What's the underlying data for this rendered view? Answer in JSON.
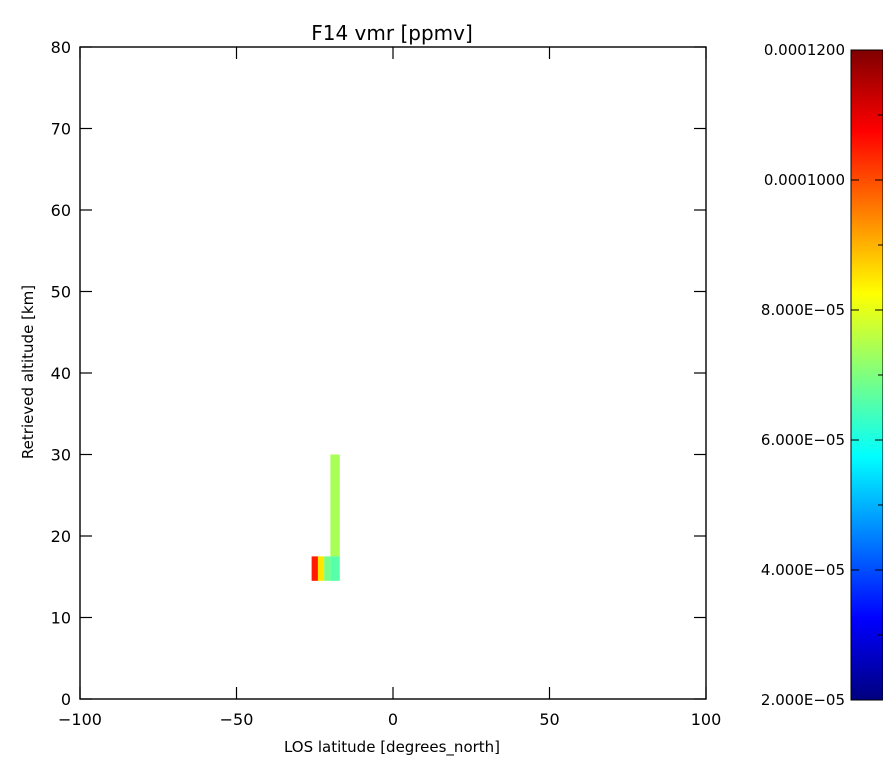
{
  "chart_data": {
    "type": "heatmap",
    "title": "F14 vmr [ppmv]",
    "xlabel": "LOS latitude [degrees_north]",
    "ylabel": "Retrieved altitude [km]",
    "xlim": [
      -100,
      100
    ],
    "ylim": [
      0,
      80
    ],
    "xticks": [
      -100,
      -50,
      0,
      50,
      100
    ],
    "xtick_labels": [
      "−100",
      "−50",
      "0",
      "50",
      "100"
    ],
    "yticks": [
      0,
      10,
      20,
      30,
      40,
      50,
      60,
      70,
      80
    ],
    "ytick_labels": [
      "0",
      "10",
      "20",
      "30",
      "40",
      "50",
      "60",
      "70",
      "80"
    ],
    "grid": false,
    "colorbar": {
      "min": 2e-05,
      "max": 0.00012,
      "colormap": "jet",
      "tick_values": [
        2e-05,
        4e-05,
        6e-05,
        8e-05,
        0.0001,
        0.00012
      ],
      "tick_labels": [
        "2.000E−05",
        "4.000E−05",
        "6.000E−05",
        "8.000E−05",
        "0.0001000",
        "0.0001200"
      ]
    },
    "cells": [
      {
        "lat_min": -20,
        "lat_max": -17,
        "alt_min": 17.5,
        "alt_max": 30,
        "value": 7.4e-05
      },
      {
        "lat_min": -20,
        "lat_max": -17,
        "alt_min": 14.5,
        "alt_max": 17.5,
        "value": 6.6e-05
      },
      {
        "lat_min": -22,
        "lat_max": -20,
        "alt_min": 14.5,
        "alt_max": 17.5,
        "value": 6.9e-05
      },
      {
        "lat_min": -24,
        "lat_max": -22,
        "alt_min": 14.5,
        "alt_max": 17.5,
        "value": 8.5e-05
      },
      {
        "lat_min": -26,
        "lat_max": -24,
        "alt_min": 14.5,
        "alt_max": 17.5,
        "value": 0.000105
      }
    ]
  }
}
